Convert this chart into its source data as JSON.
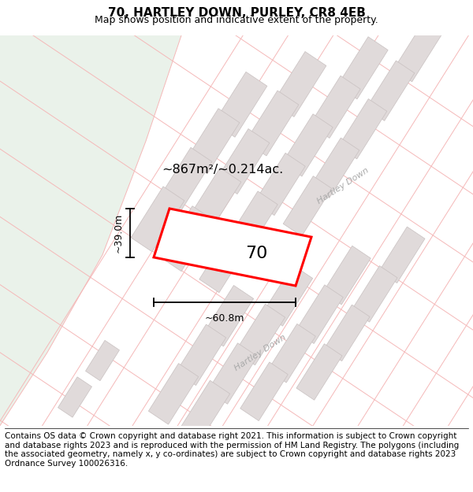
{
  "title": "70, HARTLEY DOWN, PURLEY, CR8 4EB",
  "subtitle": "Map shows position and indicative extent of the property.",
  "footer": "Contains OS data © Crown copyright and database right 2021. This information is subject to Crown copyright and database rights 2023 and is reproduced with the permission of HM Land Registry. The polygons (including the associated geometry, namely x, y co-ordinates) are subject to Crown copyright and database rights 2023 Ordnance Survey 100026316.",
  "area_label": "~867m²/~0.214ac.",
  "width_label": "~60.8m",
  "height_label": "~39.0m",
  "plot_number": "70",
  "bg_map_color": "#f7f4f4",
  "bg_green_color": "#eaf2ea",
  "road_line_color": "#f5b8b8",
  "building_color": "#e0dada",
  "building_edge_color": "#c8c0c0",
  "highlight_color": "#ff0000",
  "title_fontsize": 11,
  "subtitle_fontsize": 9,
  "footer_fontsize": 7.5,
  "road_label_color": "#aaaaaa",
  "road_label_size": 8
}
